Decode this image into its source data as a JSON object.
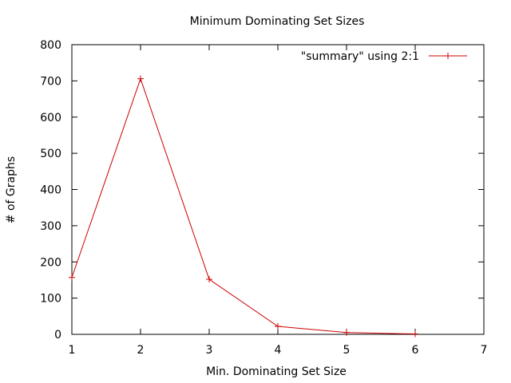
{
  "chart_data": {
    "type": "line",
    "title": "Minimum Dominating Set Sizes",
    "xlabel": "Min. Dominating Set Size",
    "ylabel": "# of Graphs",
    "xlim": [
      1,
      7
    ],
    "ylim": [
      0,
      800
    ],
    "xticks": [
      "1",
      "2",
      "3",
      "4",
      "5",
      "6",
      "7"
    ],
    "yticks": [
      "0",
      "100",
      "200",
      "300",
      "400",
      "500",
      "600",
      "700",
      "800"
    ],
    "grid": false,
    "legend_position": "top-right",
    "series": [
      {
        "name": "\"summary\" using 2:1",
        "color": "#cc0000",
        "marker": "plus",
        "x": [
          1,
          2,
          3,
          4,
          5,
          6
        ],
        "y": [
          157,
          706,
          152,
          22,
          5,
          1
        ]
      }
    ]
  }
}
